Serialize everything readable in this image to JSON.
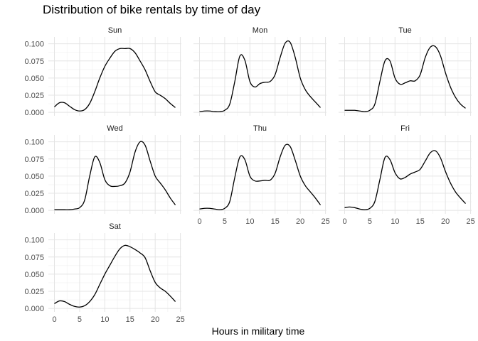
{
  "chart_data": {
    "type": "line",
    "title": "Distribution of bike rentals by time of day",
    "xlabel": "Hours in military time",
    "ylabel": "",
    "xlim": [
      0,
      24
    ],
    "ylim": [
      0,
      0.1
    ],
    "x_ticks": [
      "0",
      "5",
      "10",
      "15",
      "20",
      "25"
    ],
    "y_ticks": [
      "0.000",
      "0.025",
      "0.050",
      "0.075",
      "0.100"
    ],
    "grid": true,
    "panels": [
      {
        "name": "Sun",
        "x": [
          0,
          1,
          2,
          3,
          4,
          5,
          6,
          7,
          8,
          9,
          10,
          11,
          12,
          13,
          14,
          15,
          16,
          17,
          18,
          19,
          20,
          21,
          22,
          23,
          24
        ],
        "y": [
          0.008,
          0.014,
          0.014,
          0.009,
          0.004,
          0.002,
          0.004,
          0.013,
          0.03,
          0.05,
          0.067,
          0.079,
          0.089,
          0.093,
          0.093,
          0.093,
          0.087,
          0.075,
          0.062,
          0.045,
          0.03,
          0.025,
          0.02,
          0.013,
          0.007
        ]
      },
      {
        "name": "Mon",
        "x": [
          0,
          1,
          2,
          3,
          4,
          5,
          6,
          7,
          8,
          9,
          10,
          11,
          12,
          13,
          14,
          15,
          16,
          17,
          18,
          19,
          20,
          21,
          22,
          23,
          24
        ],
        "y": [
          0.001,
          0.002,
          0.002,
          0.001,
          0.001,
          0.003,
          0.012,
          0.045,
          0.082,
          0.076,
          0.045,
          0.037,
          0.042,
          0.044,
          0.045,
          0.055,
          0.08,
          0.101,
          0.102,
          0.08,
          0.05,
          0.033,
          0.023,
          0.015,
          0.007
        ]
      },
      {
        "name": "Tue",
        "x": [
          0,
          1,
          2,
          3,
          4,
          5,
          6,
          7,
          8,
          9,
          10,
          11,
          12,
          13,
          14,
          15,
          16,
          17,
          18,
          19,
          20,
          21,
          22,
          23,
          24
        ],
        "y": [
          0.003,
          0.003,
          0.003,
          0.002,
          0.001,
          0.003,
          0.012,
          0.045,
          0.075,
          0.075,
          0.05,
          0.041,
          0.043,
          0.046,
          0.046,
          0.055,
          0.08,
          0.095,
          0.096,
          0.083,
          0.058,
          0.037,
          0.022,
          0.012,
          0.006
        ]
      },
      {
        "name": "Wed",
        "x": [
          0,
          1,
          2,
          3,
          4,
          5,
          6,
          7,
          8,
          9,
          10,
          11,
          12,
          13,
          14,
          15,
          16,
          17,
          18,
          19,
          20,
          21,
          22,
          23,
          24
        ],
        "y": [
          0.001,
          0.001,
          0.001,
          0.001,
          0.002,
          0.004,
          0.015,
          0.05,
          0.078,
          0.07,
          0.045,
          0.036,
          0.035,
          0.036,
          0.04,
          0.056,
          0.085,
          0.1,
          0.095,
          0.072,
          0.05,
          0.04,
          0.03,
          0.018,
          0.008
        ]
      },
      {
        "name": "Thu",
        "x": [
          0,
          1,
          2,
          3,
          4,
          5,
          6,
          7,
          8,
          9,
          10,
          11,
          12,
          13,
          14,
          15,
          16,
          17,
          18,
          19,
          20,
          21,
          22,
          23,
          24
        ],
        "y": [
          0.002,
          0.003,
          0.003,
          0.002,
          0.001,
          0.003,
          0.013,
          0.048,
          0.078,
          0.074,
          0.05,
          0.043,
          0.043,
          0.044,
          0.044,
          0.054,
          0.078,
          0.095,
          0.093,
          0.073,
          0.05,
          0.036,
          0.027,
          0.018,
          0.008
        ]
      },
      {
        "name": "Fri",
        "x": [
          0,
          1,
          2,
          3,
          4,
          5,
          6,
          7,
          8,
          9,
          10,
          11,
          12,
          13,
          14,
          15,
          16,
          17,
          18,
          19,
          20,
          21,
          22,
          23,
          24
        ],
        "y": [
          0.004,
          0.005,
          0.004,
          0.002,
          0.001,
          0.003,
          0.013,
          0.045,
          0.077,
          0.074,
          0.055,
          0.046,
          0.048,
          0.053,
          0.056,
          0.06,
          0.072,
          0.084,
          0.087,
          0.077,
          0.057,
          0.04,
          0.027,
          0.018,
          0.01
        ]
      },
      {
        "name": "Sat",
        "x": [
          0,
          1,
          2,
          3,
          4,
          5,
          6,
          7,
          8,
          9,
          10,
          11,
          12,
          13,
          14,
          15,
          16,
          17,
          18,
          19,
          20,
          21,
          22,
          23,
          24
        ],
        "y": [
          0.007,
          0.011,
          0.01,
          0.006,
          0.003,
          0.002,
          0.004,
          0.01,
          0.02,
          0.035,
          0.05,
          0.063,
          0.076,
          0.087,
          0.092,
          0.09,
          0.086,
          0.081,
          0.074,
          0.055,
          0.038,
          0.03,
          0.025,
          0.018,
          0.01
        ]
      }
    ]
  }
}
